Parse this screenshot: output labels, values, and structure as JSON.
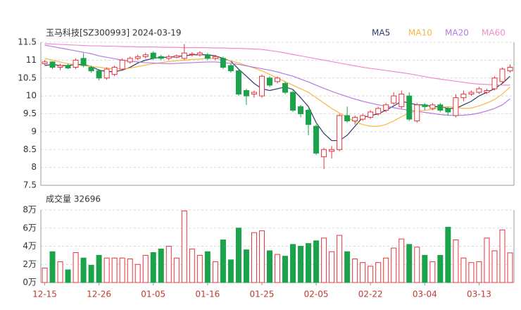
{
  "chart_data": [
    {
      "type": "candlestick",
      "title": "玉马科技[SZ300993] 2024-03-19",
      "categories": [
        "12-15",
        null,
        null,
        null,
        null,
        null,
        null,
        "12-26",
        null,
        null,
        null,
        null,
        null,
        null,
        "01-05",
        null,
        null,
        null,
        null,
        null,
        null,
        "01-16",
        null,
        null,
        null,
        null,
        null,
        null,
        "01-25",
        null,
        null,
        null,
        null,
        null,
        null,
        "02-05",
        null,
        null,
        null,
        null,
        null,
        null,
        "02-22",
        null,
        null,
        null,
        null,
        null,
        null,
        "03-04",
        null,
        null,
        null,
        null,
        null,
        null,
        "03-13",
        null,
        null,
        null,
        null
      ],
      "open": [
        10.9,
        10.95,
        10.8,
        10.85,
        10.8,
        11.05,
        10.8,
        10.7,
        10.5,
        10.6,
        10.75,
        10.95,
        11.05,
        11.1,
        11.2,
        11.1,
        11.05,
        11.08,
        11.05,
        11.15,
        11.15,
        11.15,
        11.05,
        11.05,
        10.85,
        10.7,
        10.15,
        10.05,
        10.0,
        10.5,
        10.4,
        10.35,
        10.1,
        9.7,
        9.6,
        9.15,
        8.3,
        8.45,
        8.5,
        9.45,
        9.3,
        9.35,
        9.4,
        9.5,
        9.6,
        9.8,
        9.7,
        10.0,
        9.3,
        9.75,
        9.65,
        9.75,
        9.65,
        9.45,
        9.95,
        10.05,
        10.1,
        10.1,
        10.2,
        10.4,
        10.7
      ],
      "high": [
        11.0,
        10.97,
        10.9,
        10.9,
        11.05,
        11.2,
        10.85,
        10.75,
        10.8,
        10.85,
        11.05,
        11.1,
        11.15,
        11.2,
        11.25,
        11.15,
        11.15,
        11.16,
        11.45,
        11.22,
        11.25,
        11.2,
        11.15,
        11.1,
        10.9,
        10.75,
        10.2,
        10.15,
        10.6,
        10.55,
        10.55,
        10.4,
        10.15,
        9.75,
        9.65,
        9.2,
        8.55,
        8.6,
        9.5,
        9.7,
        9.45,
        9.5,
        9.6,
        9.7,
        9.8,
        10.1,
        10.15,
        10.1,
        9.8,
        9.8,
        9.8,
        9.8,
        9.7,
        10.05,
        10.15,
        10.15,
        10.25,
        10.2,
        10.55,
        10.8,
        10.88
      ],
      "low": [
        10.87,
        10.75,
        10.72,
        10.75,
        10.75,
        10.8,
        10.65,
        10.43,
        10.45,
        10.55,
        10.7,
        10.9,
        11.0,
        11.05,
        11.0,
        11.0,
        11.0,
        11.05,
        11.0,
        11.1,
        11.1,
        11.0,
        11.0,
        10.75,
        10.65,
        10.0,
        9.75,
        9.95,
        9.95,
        10.25,
        10.35,
        10.05,
        9.55,
        9.4,
        8.9,
        8.35,
        7.95,
        8.25,
        8.45,
        9.25,
        9.2,
        9.3,
        9.35,
        9.45,
        9.55,
        9.75,
        9.65,
        9.3,
        9.25,
        9.6,
        9.6,
        9.55,
        9.45,
        9.4,
        9.85,
        10.0,
        10.05,
        10.05,
        10.15,
        10.35,
        10.65
      ],
      "close": [
        10.95,
        10.8,
        10.85,
        10.78,
        11.0,
        10.85,
        10.7,
        10.5,
        10.75,
        10.8,
        11.0,
        11.05,
        11.1,
        11.15,
        11.05,
        11.05,
        11.1,
        11.12,
        11.2,
        11.17,
        11.2,
        11.05,
        11.1,
        10.8,
        10.7,
        10.05,
        10.0,
        10.1,
        10.55,
        10.3,
        10.5,
        10.1,
        9.6,
        9.5,
        9.2,
        8.4,
        8.5,
        8.5,
        9.45,
        9.3,
        9.4,
        9.45,
        9.55,
        9.65,
        9.75,
        10.0,
        10.05,
        9.35,
        9.75,
        9.7,
        9.75,
        9.6,
        9.55,
        9.95,
        10.05,
        10.1,
        10.2,
        10.15,
        10.5,
        10.75,
        10.8
      ],
      "up_color": "#e8333a",
      "down_color": "#1aa34a",
      "ma": [
        {
          "name": "MA5",
          "color": "#2e3a6b",
          "values": [
            10.85,
            10.88,
            10.85,
            10.85,
            10.88,
            10.88,
            10.82,
            10.72,
            10.68,
            10.68,
            10.72,
            10.8,
            10.92,
            11.0,
            11.05,
            11.08,
            11.08,
            11.1,
            11.12,
            11.15,
            11.15,
            11.15,
            11.12,
            11.05,
            10.97,
            10.75,
            10.55,
            10.35,
            10.2,
            10.15,
            10.2,
            10.25,
            10.18,
            9.95,
            9.7,
            9.25,
            8.95,
            8.75,
            8.75,
            8.9,
            9.15,
            9.4,
            9.45,
            9.5,
            9.6,
            9.72,
            9.85,
            9.8,
            9.75,
            9.75,
            9.7,
            9.7,
            9.65,
            9.65,
            9.75,
            9.85,
            10.0,
            10.1,
            10.2,
            10.35,
            10.55
          ]
        },
        {
          "name": "MA10",
          "color": "#f5b942",
          "values": [
            11.05,
            11.0,
            10.95,
            10.9,
            10.87,
            10.85,
            10.82,
            10.8,
            10.78,
            10.76,
            10.75,
            10.78,
            10.82,
            10.86,
            10.9,
            10.93,
            10.96,
            10.98,
            11.0,
            11.02,
            11.03,
            11.05,
            11.05,
            11.02,
            10.98,
            10.92,
            10.85,
            10.78,
            10.7,
            10.6,
            10.5,
            10.4,
            10.3,
            10.2,
            10.1,
            9.95,
            9.8,
            9.65,
            9.52,
            9.4,
            9.28,
            9.2,
            9.15,
            9.15,
            9.2,
            9.3,
            9.42,
            9.52,
            9.58,
            9.6,
            9.62,
            9.68,
            9.7,
            9.68,
            9.65,
            9.66,
            9.72,
            9.8,
            9.9,
            10.05,
            10.25
          ]
        },
        {
          "name": "MA20",
          "color": "#b47ce0",
          "values": [
            11.42,
            11.38,
            11.34,
            11.3,
            11.26,
            11.22,
            11.18,
            11.12,
            11.08,
            11.04,
            11.0,
            10.97,
            10.95,
            10.93,
            10.92,
            10.91,
            10.9,
            10.91,
            10.92,
            10.93,
            10.94,
            10.95,
            10.95,
            10.93,
            10.91,
            10.88,
            10.84,
            10.8,
            10.76,
            10.72,
            10.67,
            10.61,
            10.55,
            10.47,
            10.39,
            10.3,
            10.21,
            10.13,
            10.05,
            9.98,
            9.91,
            9.85,
            9.8,
            9.75,
            9.71,
            9.67,
            9.63,
            9.6,
            9.57,
            9.54,
            9.51,
            9.48,
            9.46,
            9.45,
            9.46,
            9.48,
            9.52,
            9.58,
            9.65,
            9.75,
            9.92
          ]
        },
        {
          "name": "MA60",
          "color": "#f08ccd",
          "values": [
            11.46,
            11.45,
            11.44,
            11.43,
            11.42,
            11.41,
            11.4,
            11.4,
            11.39,
            11.39,
            11.38,
            11.38,
            11.37,
            11.37,
            11.37,
            11.36,
            11.36,
            11.36,
            11.35,
            11.35,
            11.35,
            11.35,
            11.34,
            11.34,
            11.33,
            11.33,
            11.32,
            11.31,
            11.3,
            11.27,
            11.24,
            11.2,
            11.16,
            11.12,
            11.08,
            11.04,
            11.0,
            10.96,
            10.92,
            10.88,
            10.84,
            10.8,
            10.77,
            10.74,
            10.71,
            10.68,
            10.65,
            10.62,
            10.58,
            10.54,
            10.5,
            10.47,
            10.44,
            10.41,
            10.38,
            10.35,
            10.33,
            10.32,
            10.31,
            10.3,
            10.3
          ]
        }
      ],
      "ylim": [
        7.5,
        11.5
      ],
      "yticks": [
        7.5,
        8,
        8.5,
        9,
        9.5,
        10,
        10.5,
        11,
        11.5
      ],
      "grid": true
    },
    {
      "type": "volume",
      "title": "成交量 32696",
      "values": [
        1.6,
        3.4,
        2.3,
        1.4,
        3.3,
        2.7,
        1.9,
        3.0,
        2.7,
        2.7,
        2.7,
        2.6,
        2.0,
        3.0,
        3.3,
        3.7,
        4.0,
        2.7,
        7.9,
        3.7,
        3.0,
        3.4,
        2.3,
        4.7,
        2.5,
        6.0,
        3.6,
        5.5,
        5.7,
        3.5,
        3.1,
        2.9,
        4.2,
        4.0,
        4.3,
        4.6,
        4.9,
        3.4,
        5.2,
        3.4,
        2.6,
        2.2,
        1.8,
        2.2,
        2.7,
        3.8,
        4.8,
        4.2,
        3.9,
        3.0,
        2.3,
        3.0,
        6.1,
        4.7,
        2.7,
        2.2,
        2.3,
        4.9,
        3.5,
        5.8,
        3.2696
      ],
      "ylim": [
        0,
        8
      ],
      "yticks": [
        {
          "value": 0,
          "label": "0万"
        },
        {
          "value": 2,
          "label": "2万"
        },
        {
          "value": 4,
          "label": "4万"
        },
        {
          "value": 6,
          "label": "6万"
        },
        {
          "value": 8,
          "label": "8万"
        }
      ],
      "grid": true
    }
  ]
}
